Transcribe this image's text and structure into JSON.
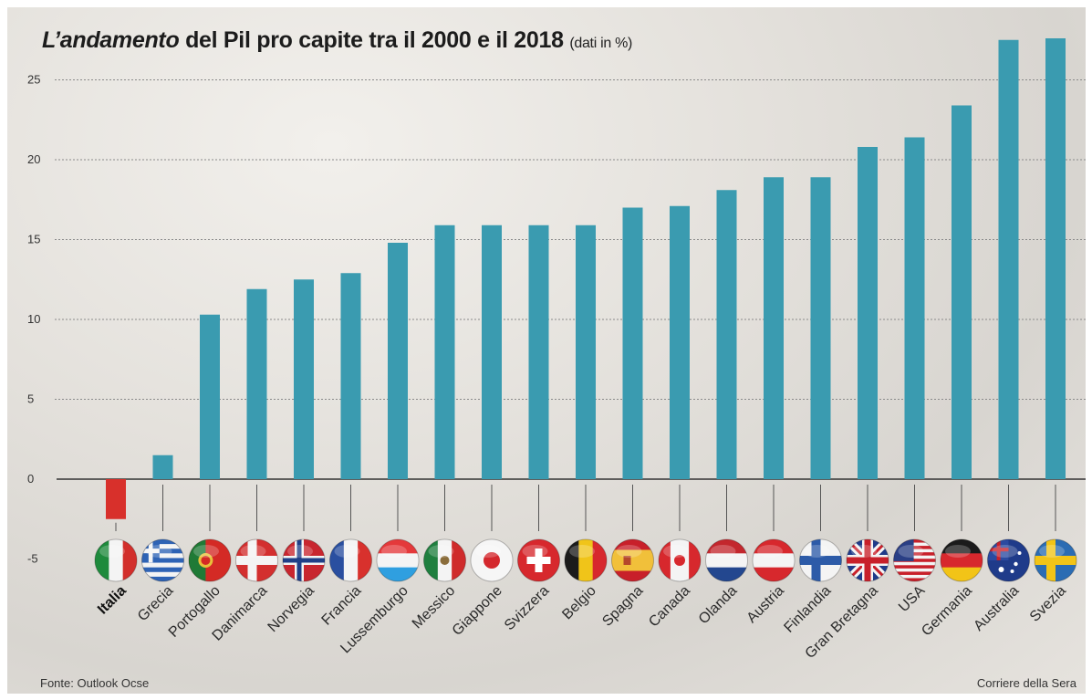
{
  "header": {
    "title_lead": "L’andamento",
    "title_rest": " del Pil pro capite tra il 2000 e il 2018",
    "subtitle": "(dati in %)"
  },
  "footer": {
    "source": "Fonte: Outlook Ocse",
    "credit": "Corriere della Sera"
  },
  "colors": {
    "bar": "#3a9bb0",
    "negative_bar": "#d8302b",
    "gridline": "#8a8a8a",
    "baseline": "#333333"
  },
  "chart_data": {
    "type": "bar",
    "title": "L’andamento del Pil pro capite tra il 2000 e il 2018",
    "subtitle": "(dati in %)",
    "xlabel": "",
    "ylabel": "",
    "ylim": [
      -5,
      27
    ],
    "yticks": [
      25,
      20,
      15,
      10,
      5,
      0,
      -5
    ],
    "grid": true,
    "highlight": "Italia",
    "categories": [
      "Italia",
      "Grecia",
      "Portogallo",
      "Danimarca",
      "Norvegia",
      "Francia",
      "Lussemburgo",
      "Messico",
      "Giappone",
      "Svizzera",
      "Belgio",
      "Spagna",
      "Canada",
      "Olanda",
      "Austria",
      "Finlandia",
      "Gran Bretagna",
      "USA",
      "Germania",
      "Australia",
      "Svezia"
    ],
    "values": [
      -2.5,
      1.5,
      10.3,
      11.9,
      12.5,
      12.9,
      14.8,
      15.9,
      15.9,
      15.9,
      15.9,
      17.0,
      17.1,
      18.1,
      18.9,
      18.9,
      20.8,
      21.4,
      23.4,
      27.5,
      27.6
    ],
    "flags": [
      "italy-flag-icon",
      "greece-flag-icon",
      "portugal-flag-icon",
      "denmark-flag-icon",
      "norway-flag-icon",
      "france-flag-icon",
      "luxembourg-flag-icon",
      "mexico-flag-icon",
      "japan-flag-icon",
      "switzerland-flag-icon",
      "belgium-flag-icon",
      "spain-flag-icon",
      "canada-flag-icon",
      "netherlands-flag-icon",
      "austria-flag-icon",
      "finland-flag-icon",
      "uk-flag-icon",
      "usa-flag-icon",
      "germany-flag-icon",
      "australia-flag-icon",
      "sweden-flag-icon"
    ]
  }
}
